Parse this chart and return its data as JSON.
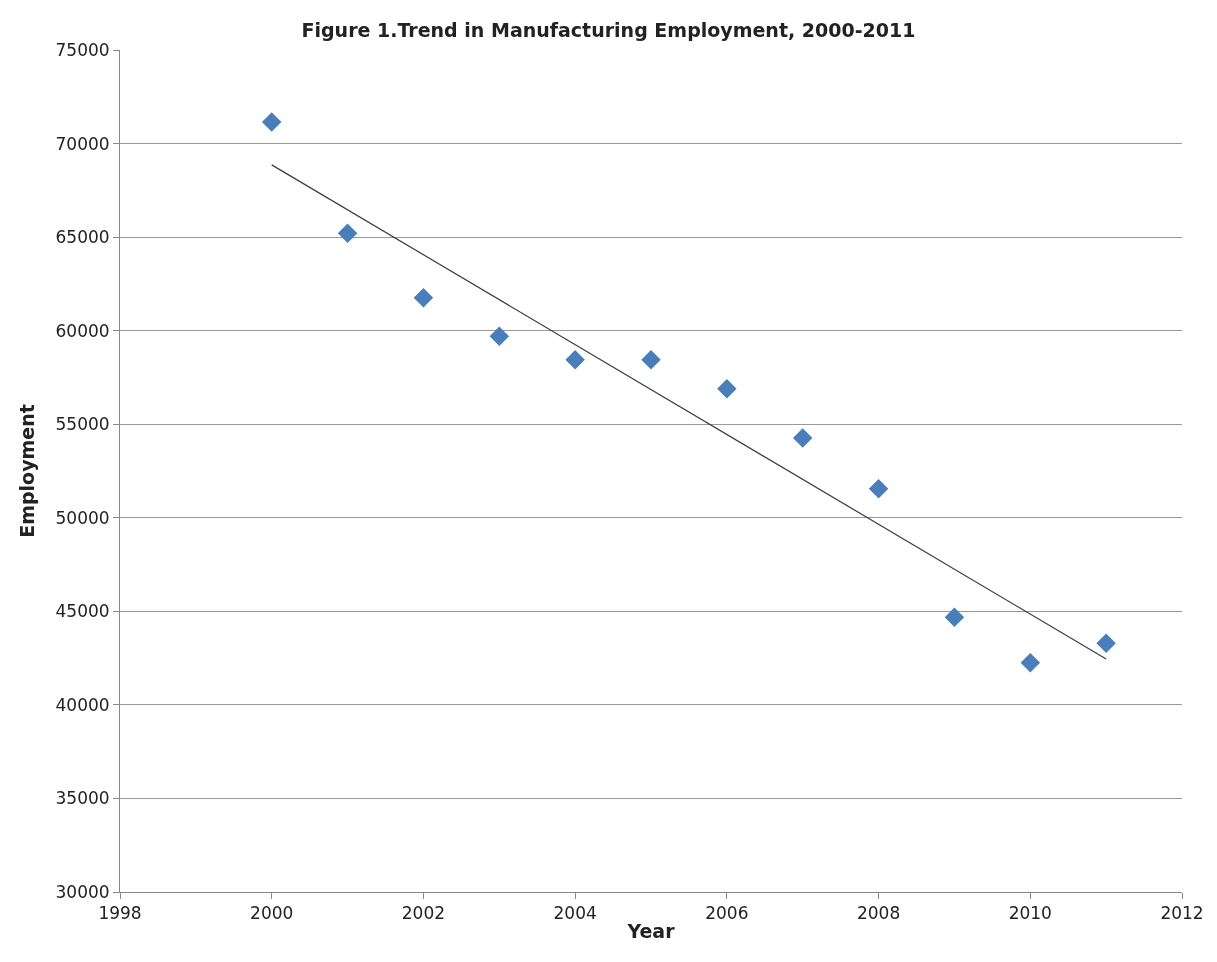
{
  "chart_data": {
    "type": "scatter",
    "title": "Figure 1.Trend in Manufacturing Employment, 2000-2011",
    "xlabel": "Year",
    "ylabel": "Employment",
    "xlim": [
      1998,
      2012
    ],
    "xticks": [
      1998,
      2000,
      2002,
      2004,
      2006,
      2008,
      2010,
      2012
    ],
    "ylim": [
      30000,
      75000
    ],
    "yticks": [
      30000,
      35000,
      40000,
      45000,
      50000,
      55000,
      60000,
      65000,
      70000,
      75000
    ],
    "grid": "y",
    "series": [
      {
        "marker": "diamond",
        "color": "#4a7ebb",
        "x": [
          2000,
          2001,
          2002,
          2003,
          2004,
          2005,
          2006,
          2007,
          2008,
          2009,
          2010,
          2011
        ],
        "values": [
          71150,
          65200,
          61760,
          59700,
          58440,
          58440,
          56900,
          54260,
          51550,
          44680,
          42250,
          43290
        ]
      },
      {
        "type": "line",
        "marker": "none",
        "color": "#3a3a3a",
        "x": [
          2000,
          2011
        ],
        "values": [
          68860,
          42450
        ]
      }
    ]
  }
}
